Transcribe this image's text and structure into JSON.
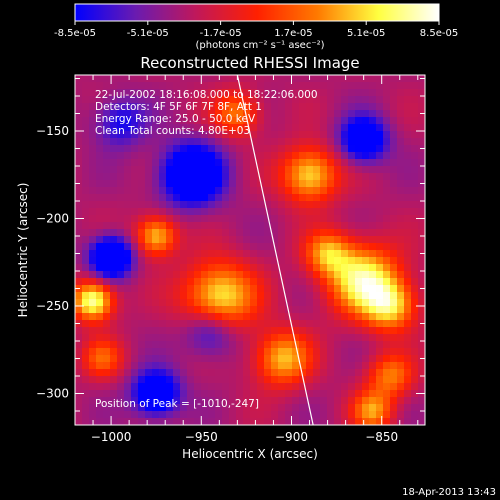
{
  "colorbar": {
    "tick_labels": [
      "-8.5e-05",
      "-5.1e-05",
      "-1.7e-05",
      "1.7e-05",
      "5.1e-05",
      "8.5e-05"
    ],
    "tick_values": [
      -8.5e-05,
      -5.1e-05,
      -1.7e-05,
      1.7e-05,
      5.1e-05,
      8.5e-05
    ],
    "range": [
      -8.5e-05,
      8.5e-05
    ],
    "unit_label": "(photons cm⁻² s⁻¹ asec⁻²)",
    "colors": [
      "#0000ff",
      "#6a1bb0",
      "#c0185a",
      "#ff2000",
      "#ff7a00",
      "#ffff40",
      "#ffffff"
    ]
  },
  "chart_data": {
    "type": "heatmap",
    "title": "Reconstructed RHESSI Image",
    "xlabel": "Heliocentric X (arcsec)",
    "ylabel": "Heliocentric Y (arcsec)",
    "xlim": [
      -1020,
      -826
    ],
    "ylim": [
      -318,
      -118
    ],
    "x_ticks": [
      -1000,
      -950,
      -900,
      -850
    ],
    "x_tick_labels": [
      "−1000",
      "−950",
      "−900",
      "−850"
    ],
    "y_ticks": [
      -150,
      -200,
      -250,
      -300
    ],
    "y_tick_labels": [
      "−150",
      "−200",
      "−250",
      "−300"
    ],
    "info_lines": [
      "22-Jul-2002 18:16:08.000 to 18:22:06.000",
      "Detectors: 4F 5F 6F 7F 8F, Att 1",
      "Energy Range: 25.0 - 50.0 keV",
      "Clean    Total counts: 4.80E+03"
    ],
    "peak_text": "Position of Peak = [-1010,-247]",
    "limb_line": [
      [
        -930,
        -118
      ],
      [
        -888,
        -318
      ]
    ],
    "sources": [
      {
        "x": -1000,
        "y": -222,
        "amp": -1.0,
        "sigma": 8
      },
      {
        "x": -955,
        "y": -175,
        "amp": -0.95,
        "sigma": 12
      },
      {
        "x": -860,
        "y": -155,
        "amp": -0.8,
        "sigma": 9
      },
      {
        "x": -975,
        "y": -300,
        "amp": -0.85,
        "sigma": 9
      },
      {
        "x": -945,
        "y": -265,
        "amp": -0.5,
        "sigma": 10
      },
      {
        "x": -1010,
        "y": -247,
        "amp": 1.0,
        "sigma": 8
      },
      {
        "x": -975,
        "y": -210,
        "amp": 0.75,
        "sigma": 8
      },
      {
        "x": -940,
        "y": -245,
        "amp": 0.85,
        "sigma": 14
      },
      {
        "x": -905,
        "y": -280,
        "amp": 0.7,
        "sigma": 11
      },
      {
        "x": -890,
        "y": -175,
        "amp": 0.8,
        "sigma": 11
      },
      {
        "x": -860,
        "y": -235,
        "amp": 0.9,
        "sigma": 14
      },
      {
        "x": -845,
        "y": -250,
        "amp": 0.7,
        "sigma": 10
      },
      {
        "x": -880,
        "y": -220,
        "amp": 0.6,
        "sigma": 9
      },
      {
        "x": -845,
        "y": -290,
        "amp": 0.55,
        "sigma": 9
      },
      {
        "x": -1005,
        "y": -280,
        "amp": 0.45,
        "sigma": 8
      },
      {
        "x": -930,
        "y": -140,
        "amp": 0.55,
        "sigma": 9
      },
      {
        "x": -855,
        "y": -310,
        "amp": 0.6,
        "sigma": 8
      },
      {
        "x": -995,
        "y": -145,
        "amp": -0.45,
        "sigma": 10
      }
    ]
  },
  "footer": {
    "timestamp": "18-Apr-2013 13:43"
  }
}
